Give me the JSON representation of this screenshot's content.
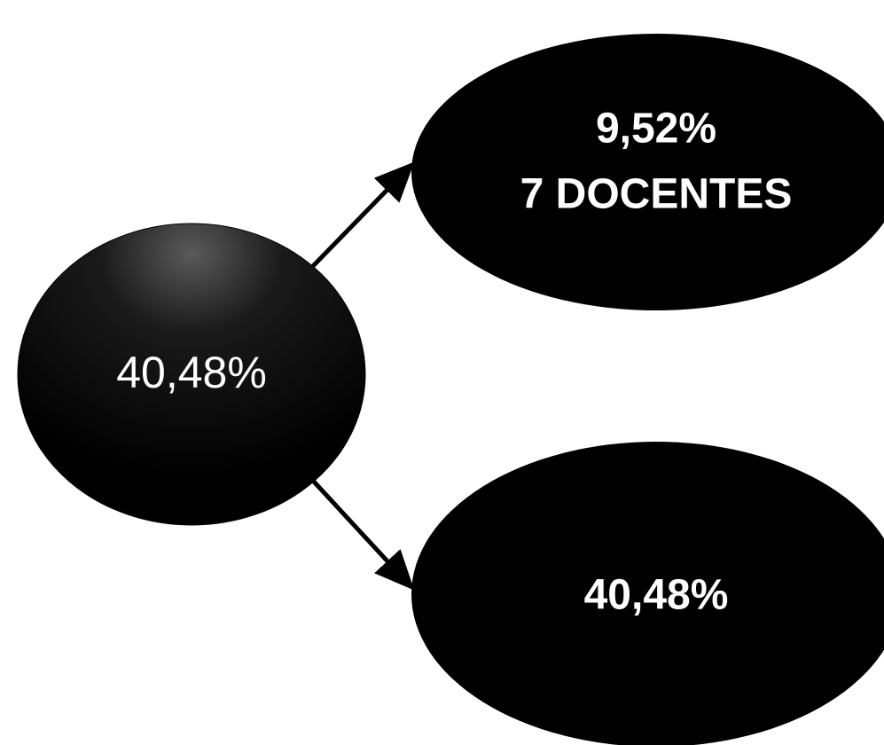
{
  "nodes": {
    "source": {
      "label": "40,48%"
    },
    "top": {
      "line1": "9,52%",
      "line2": "7 DOCENTES"
    },
    "bottom": {
      "label": "40,48%"
    }
  },
  "colors": {
    "node_fill": "#000000",
    "node_highlight": "#4a4a4a",
    "text": "#ffffff",
    "arrow": "#000000"
  }
}
